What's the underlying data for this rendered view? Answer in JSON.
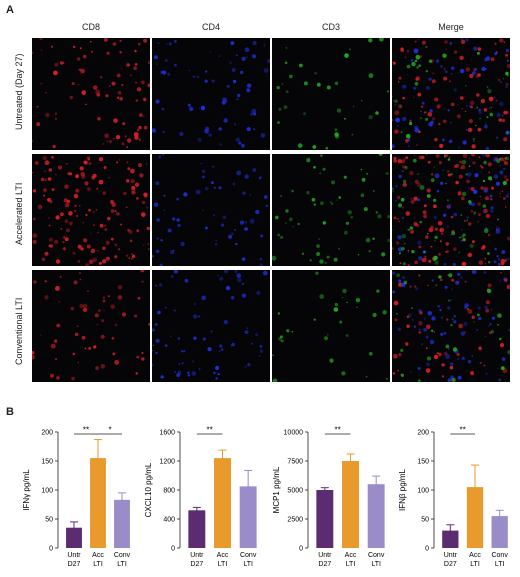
{
  "panel_a": {
    "letter": "A",
    "columns": [
      "CD8",
      "CD4",
      "CD3",
      "Merge"
    ],
    "rows": [
      "Untreated (Day 27)",
      "Accelerated LTI",
      "Conventional LTI"
    ],
    "channel_colors": {
      "CD8": "#e0202a",
      "CD4": "#2030e0",
      "CD3": "#20b020"
    }
  },
  "panel_b": {
    "letter": "B"
  },
  "chart_data": [
    {
      "type": "bar",
      "ylabel": "IFNγ pg/mL",
      "categories": [
        "Untr D27",
        "Acc LTI",
        "Conv LTI"
      ],
      "category_lines": [
        [
          "Untr",
          "D27"
        ],
        [
          "Acc",
          "LTI"
        ],
        [
          "Conv",
          "LTI"
        ]
      ],
      "values": [
        35,
        155,
        83
      ],
      "errors": [
        10,
        32,
        12
      ],
      "ylim": [
        0,
        200
      ],
      "yticks": [
        "0",
        "50",
        "100",
        "150",
        "200"
      ],
      "colors": [
        "#5b2c6f",
        "#e89a2c",
        "#9a8cc8"
      ],
      "significance": [
        {
          "from": 0,
          "to": 1,
          "label": "**"
        },
        {
          "from": 1,
          "to": 2,
          "label": "*"
        }
      ]
    },
    {
      "type": "bar",
      "ylabel": "CXCL10 pg/mL",
      "categories": [
        "Untr D27",
        "Acc LTI",
        "Conv LTI"
      ],
      "category_lines": [
        [
          "Untr",
          "D27"
        ],
        [
          "Acc",
          "LTI"
        ],
        [
          "Conv",
          "LTI"
        ]
      ],
      "values": [
        520,
        1240,
        850
      ],
      "errors": [
        40,
        110,
        220
      ],
      "ylim": [
        0,
        1600
      ],
      "yticks": [
        "0",
        "400",
        "800",
        "1200",
        "1600"
      ],
      "colors": [
        "#5b2c6f",
        "#e89a2c",
        "#9a8cc8"
      ],
      "significance": [
        {
          "from": 0,
          "to": 1,
          "label": "**"
        }
      ]
    },
    {
      "type": "bar",
      "ylabel": "MCP1 pg/mL",
      "categories": [
        "Untr D27",
        "Acc LTI",
        "Conv LTI"
      ],
      "category_lines": [
        [
          "Untr",
          "D27"
        ],
        [
          "Acc",
          "LTI"
        ],
        [
          "Conv",
          "LTI"
        ]
      ],
      "values": [
        5000,
        7500,
        5500
      ],
      "errors": [
        200,
        600,
        700
      ],
      "ylim": [
        0,
        10000
      ],
      "yticks": [
        "0",
        "2500",
        "5000",
        "7500",
        "10000"
      ],
      "colors": [
        "#5b2c6f",
        "#e89a2c",
        "#9a8cc8"
      ],
      "significance": [
        {
          "from": 0,
          "to": 1,
          "label": "**"
        }
      ]
    },
    {
      "type": "bar",
      "ylabel": "IFNβ pg/mL",
      "categories": [
        "Untr D27",
        "Acc LTI",
        "Conv LTI"
      ],
      "category_lines": [
        [
          "Untr",
          "D27"
        ],
        [
          "Acc",
          "LTI"
        ],
        [
          "Conv",
          "LTI"
        ]
      ],
      "values": [
        30,
        105,
        55
      ],
      "errors": [
        10,
        38,
        10
      ],
      "ylim": [
        0,
        200
      ],
      "yticks": [
        "0",
        "50",
        "100",
        "150",
        "200"
      ],
      "colors": [
        "#5b2c6f",
        "#e89a2c",
        "#9a8cc8"
      ],
      "significance": [
        {
          "from": 0,
          "to": 1,
          "label": "**"
        }
      ]
    }
  ]
}
